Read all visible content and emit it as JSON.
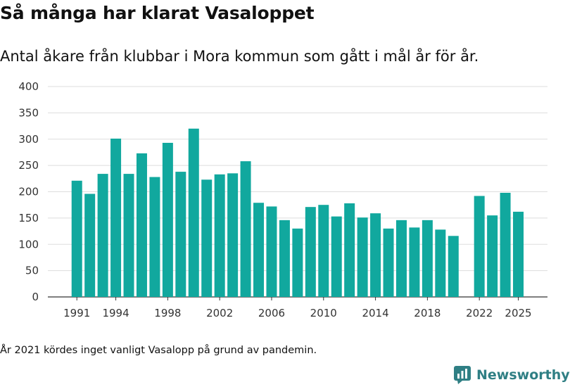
{
  "header": {
    "title": "Så många har klarat Vasaloppet",
    "subtitle": "Antal åkare från klubbar i Mora kommun som gått i mål år för år."
  },
  "footnote": "År 2021 kördes inget vanligt Vasalopp på grund av pandemin.",
  "brand": {
    "name": "Newsworthy",
    "icon": "newsworthy-logo-icon",
    "color": "#2f7f84"
  },
  "chart_data": {
    "type": "bar",
    "title": "",
    "xlabel": "",
    "ylabel": "",
    "ylim": [
      0,
      400
    ],
    "y_ticks": [
      0,
      50,
      100,
      150,
      200,
      250,
      300,
      350,
      400
    ],
    "x_range": [
      1991,
      2025
    ],
    "x_tick_labels": [
      1991,
      1994,
      1998,
      2002,
      2006,
      2010,
      2014,
      2018,
      2022,
      2025
    ],
    "grid": true,
    "bar_color": "#11a89e",
    "legend": "none",
    "series": [
      {
        "x": [
          1991,
          1992,
          1993,
          1994,
          1995,
          1996,
          1997,
          1998,
          1999,
          2000,
          2001,
          2002,
          2003,
          2004,
          2005,
          2006,
          2007,
          2008,
          2009,
          2010,
          2011,
          2012,
          2013,
          2014,
          2015,
          2016,
          2017,
          2018,
          2019,
          2020,
          2022,
          2023,
          2024,
          2025
        ],
        "values": [
          221,
          196,
          234,
          301,
          234,
          273,
          228,
          293,
          238,
          320,
          223,
          233,
          235,
          258,
          179,
          172,
          146,
          130,
          171,
          175,
          153,
          178,
          151,
          159,
          130,
          146,
          132,
          146,
          128,
          116,
          192,
          155,
          198,
          162
        ]
      }
    ]
  }
}
